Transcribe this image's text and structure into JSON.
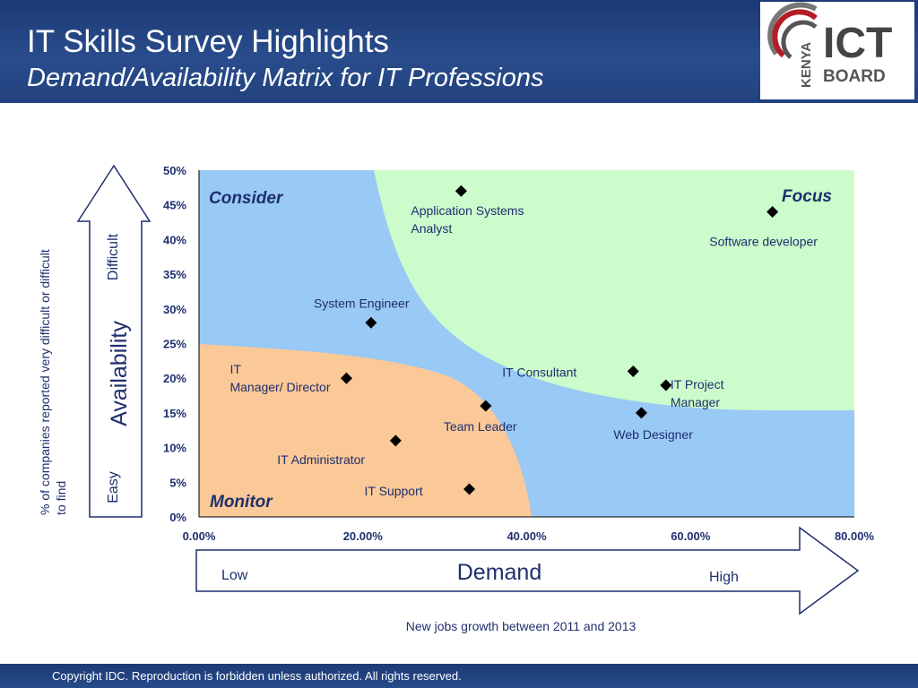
{
  "header": {
    "title": "IT Skills Survey Highlights",
    "subtitle": "Demand/Availability Matrix for IT Professions"
  },
  "logo": {
    "top_text": "KENYA",
    "word1": "ICT",
    "word2": "BOARD"
  },
  "footer": {
    "copyright": "Copyright IDC. Reproduction is forbidden unless authorized. All rights reserved."
  },
  "colors": {
    "header_bg": "#22427e",
    "consider": "#99c9f5",
    "focus": "#ccfbcc",
    "monitor": "#fbc898",
    "marker": "#000000",
    "label": "#1f2f6e"
  },
  "chart_data": {
    "type": "scatter",
    "xlim": [
      0,
      0.8
    ],
    "ylim": [
      0,
      0.5
    ],
    "x_ticks": [
      "0.00%",
      "20.00%",
      "40.00%",
      "60.00%",
      "80.00%"
    ],
    "y_ticks": [
      "0%",
      "5%",
      "10%",
      "15%",
      "20%",
      "25%",
      "30%",
      "35%",
      "40%",
      "45%",
      "50%"
    ],
    "xlabel": "New jobs growth between 2011 and 2013",
    "ylabel": "% of companies reported very difficult or difficult to find",
    "regions": [
      {
        "name": "Consider",
        "color": "#99c9f5"
      },
      {
        "name": "Focus",
        "color": "#ccfbcc"
      },
      {
        "name": "Monitor",
        "color": "#fbc898"
      }
    ],
    "points": [
      {
        "label": "Application Systems Analyst",
        "x": 0.32,
        "y": 0.47
      },
      {
        "label": "Software developer",
        "x": 0.7,
        "y": 0.44
      },
      {
        "label": "System Engineer",
        "x": 0.21,
        "y": 0.28
      },
      {
        "label": "IT Manager/ Director",
        "x": 0.18,
        "y": 0.2
      },
      {
        "label": "IT Consultant",
        "x": 0.53,
        "y": 0.21
      },
      {
        "label": "IT Project Manager",
        "x": 0.57,
        "y": 0.19
      },
      {
        "label": "Team Leader",
        "x": 0.35,
        "y": 0.16
      },
      {
        "label": "Web Designer",
        "x": 0.54,
        "y": 0.15
      },
      {
        "label": "IT Administrator",
        "x": 0.24,
        "y": 0.11
      },
      {
        "label": "IT Support",
        "x": 0.33,
        "y": 0.04
      }
    ],
    "grid": false
  },
  "availability_arrow": {
    "title": "Availability",
    "high": "Difficult",
    "low": "Easy"
  },
  "demand_arrow": {
    "title": "Demand",
    "low": "Low",
    "high": "High"
  }
}
